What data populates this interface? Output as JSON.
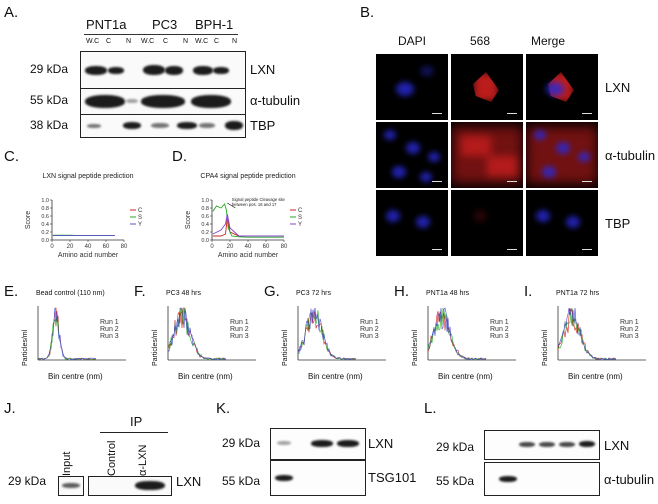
{
  "panels": {
    "A": {
      "label": "A.",
      "groups": [
        "PNT1a",
        "PC3",
        "BPH-1"
      ],
      "lanes": [
        "W.C",
        "C",
        "N",
        "W.C",
        "C",
        "N",
        "W.C",
        "C",
        "N"
      ],
      "rows": [
        {
          "mw": "29 kDa",
          "protein": "LXN"
        },
        {
          "mw": "55 kDa",
          "protein": "α-tubulin"
        },
        {
          "mw": "38 kDa",
          "protein": "TBP"
        }
      ]
    },
    "B": {
      "label": "B.",
      "columns": [
        "DAPI",
        "568",
        "Merge"
      ],
      "rows": [
        "LXN",
        "α-tubulin",
        "TBP"
      ]
    },
    "C": {
      "label": "C.",
      "chart_data": {
        "type": "line",
        "title": "LXN signal peptide prediction",
        "xlabel": "Amino acid number",
        "ylabel": "Score",
        "xlim": [
          0,
          80
        ],
        "ylim": [
          0,
          1.0
        ],
        "xticks": [
          "0",
          "20",
          "40",
          "60",
          "80"
        ],
        "yticks": [
          "0.0",
          "0.2",
          "0.4",
          "0.6",
          "0.8",
          "1.0"
        ],
        "legend": [
          "C",
          "S",
          "Y"
        ],
        "series": [
          {
            "name": "C",
            "color": "#cc2222",
            "x": [
              1,
              10,
              20,
              30,
              40,
              50,
              60,
              70
            ],
            "values": [
              0.11,
              0.11,
              0.11,
              0.11,
              0.11,
              0.11,
              0.11,
              0.11
            ]
          },
          {
            "name": "S",
            "color": "#22aa22",
            "x": [
              1,
              10,
              20,
              30,
              40,
              50,
              60,
              70
            ],
            "values": [
              0.12,
              0.12,
              0.12,
              0.11,
              0.11,
              0.11,
              0.11,
              0.11
            ]
          },
          {
            "name": "Y",
            "color": "#5555cc",
            "x": [
              1,
              10,
              20,
              30,
              40,
              50,
              60,
              70
            ],
            "values": [
              0.11,
              0.11,
              0.11,
              0.11,
              0.11,
              0.11,
              0.11,
              0.11
            ]
          }
        ]
      }
    },
    "D": {
      "label": "D.",
      "annotation": "Signal peptide Cleavage site between pos. 16 and 17",
      "chart_data": {
        "type": "line",
        "title": "CPA4 signal peptide prediction",
        "xlabel": "Amino acid number",
        "ylabel": "Score",
        "xlim": [
          0,
          80
        ],
        "ylim": [
          0,
          1.0
        ],
        "xticks": [
          "0",
          "20",
          "40",
          "60",
          "80"
        ],
        "yticks": [
          "0.0",
          "0.2",
          "0.4",
          "0.6",
          "0.8",
          "1.0"
        ],
        "legend": [
          "C",
          "S",
          "Y"
        ],
        "series": [
          {
            "name": "C",
            "color": "#cc2222",
            "x": [
              1,
              10,
              15,
              17,
              20,
              30,
              40,
              60,
              80
            ],
            "values": [
              0.1,
              0.1,
              0.15,
              0.55,
              0.2,
              0.1,
              0.1,
              0.1,
              0.1
            ]
          },
          {
            "name": "S",
            "color": "#22aa22",
            "x": [
              1,
              5,
              10,
              14,
              16,
              18,
              22,
              30,
              40,
              60,
              80
            ],
            "values": [
              0.72,
              0.85,
              0.8,
              0.9,
              0.75,
              0.3,
              0.1,
              0.08,
              0.07,
              0.07,
              0.07
            ]
          },
          {
            "name": "Y",
            "color": "#8844cc",
            "x": [
              1,
              10,
              15,
              17,
              20,
              30,
              40,
              60,
              80
            ],
            "values": [
              0.15,
              0.25,
              0.4,
              0.65,
              0.3,
              0.1,
              0.1,
              0.1,
              0.1
            ]
          }
        ]
      }
    },
    "nta": [
      {
        "label": "E.",
        "title": "Bead control (110 nm)",
        "xlabel": "Bin centre (nm)",
        "ylabel": "Particles/ml",
        "legend": [
          "Run 1",
          "Run 2",
          "Run 3"
        ]
      },
      {
        "label": "F.",
        "title": "PC3 48 hrs",
        "xlabel": "Bin centre (nm)",
        "ylabel": "Particles/ml",
        "legend": [
          "Run 1",
          "Run 2",
          "Run 3"
        ]
      },
      {
        "label": "G.",
        "title": "PC3 72 hrs",
        "xlabel": "Bin centre (nm)",
        "ylabel": "Particles/ml",
        "legend": [
          "Run 1",
          "Run 2",
          "Run 3"
        ]
      },
      {
        "label": "H.",
        "title": "PNT1a 48 hrs",
        "xlabel": "Bin centre (nm)",
        "ylabel": "Particles/ml",
        "legend": [
          "Run 1",
          "Run 2",
          "Run 3"
        ]
      },
      {
        "label": "I.",
        "title": "PNT1a 72 hrs",
        "xlabel": "Bin centre (nm)",
        "ylabel": "Particles/ml",
        "legend": [
          "Run 1",
          "Run 2",
          "Run 3"
        ]
      }
    ],
    "J": {
      "label": "J.",
      "ip": "IP",
      "lanes": [
        "Input",
        "Control",
        "α-LXN"
      ],
      "mw": "29 kDa",
      "protein": "LXN"
    },
    "K": {
      "label": "K.",
      "rows": [
        {
          "mw": "29 kDa",
          "protein": "LXN"
        },
        {
          "mw": "55 kDa",
          "protein": "TSG101"
        }
      ]
    },
    "L": {
      "label": "L.",
      "rows": [
        {
          "mw": "29 kDa",
          "protein": "LXN"
        },
        {
          "mw": "55 kDa",
          "protein": "α-tubulin"
        }
      ]
    }
  },
  "colors": {
    "dapi": "#2a2ad8",
    "alexa568": "#d02020",
    "series_red": "#cc2222",
    "series_green": "#22aa22",
    "series_blue": "#5555cc"
  }
}
